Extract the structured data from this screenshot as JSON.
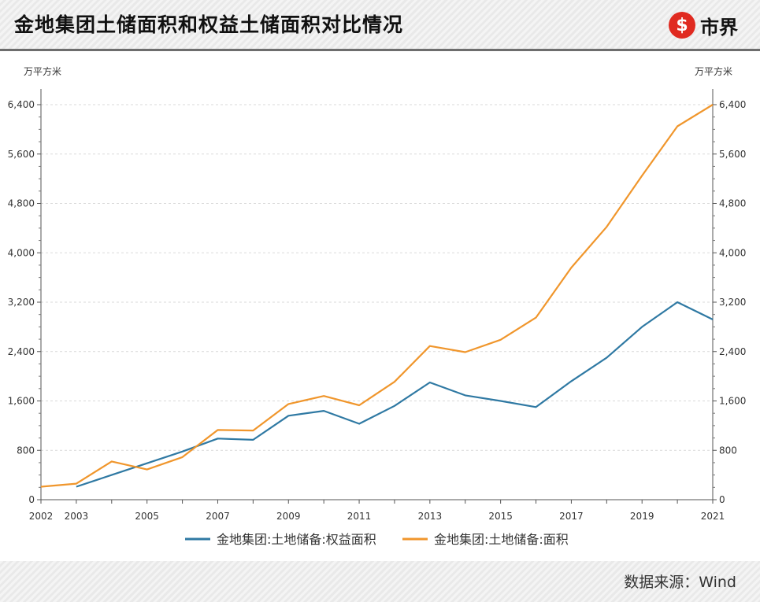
{
  "header": {
    "title": "金地集团土储面积和权益土储面积对比情况",
    "logo_symbol": "$",
    "logo_text": "市界"
  },
  "footer": {
    "source": "数据来源：Wind"
  },
  "chart_data": {
    "type": "line",
    "title": "金地集团土储面积和权益土储面积对比情况",
    "ylabel": "万平方米",
    "ylabel_right": "万平方米",
    "ylim": [
      0,
      6400
    ],
    "yticks": [
      0,
      800,
      1600,
      2400,
      3200,
      4000,
      4800,
      5600,
      6400
    ],
    "ytick_labels": [
      "0",
      "800",
      "1,600",
      "2,400",
      "3,200",
      "4,000",
      "4,800",
      "5,600",
      "6,400"
    ],
    "x": [
      2002,
      2003,
      2004,
      2005,
      2006,
      2007,
      2008,
      2009,
      2010,
      2011,
      2012,
      2013,
      2014,
      2015,
      2016,
      2017,
      2018,
      2019,
      2020,
      2021
    ],
    "xtick_labels": [
      "2002",
      "2003",
      "2005",
      "2007",
      "2009",
      "2011",
      "2013",
      "2015",
      "2017",
      "2019",
      "2021"
    ],
    "grid": true,
    "legend_position": "bottom",
    "series": [
      {
        "name": "金地集团:土地储备:权益面积",
        "color": "#2f79a3",
        "values": [
          null,
          210,
          400,
          590,
          780,
          990,
          970,
          1360,
          1440,
          1230,
          1520,
          1900,
          1690,
          1600,
          1500,
          1920,
          2300,
          2800,
          3200,
          2920
        ]
      },
      {
        "name": "金地集团:土地储备:面积",
        "color": "#f0962c",
        "values": [
          210,
          260,
          620,
          490,
          690,
          1130,
          1120,
          1550,
          1680,
          1530,
          1910,
          2490,
          2390,
          2590,
          2950,
          3760,
          4420,
          5250,
          6050,
          6400
        ]
      }
    ]
  }
}
